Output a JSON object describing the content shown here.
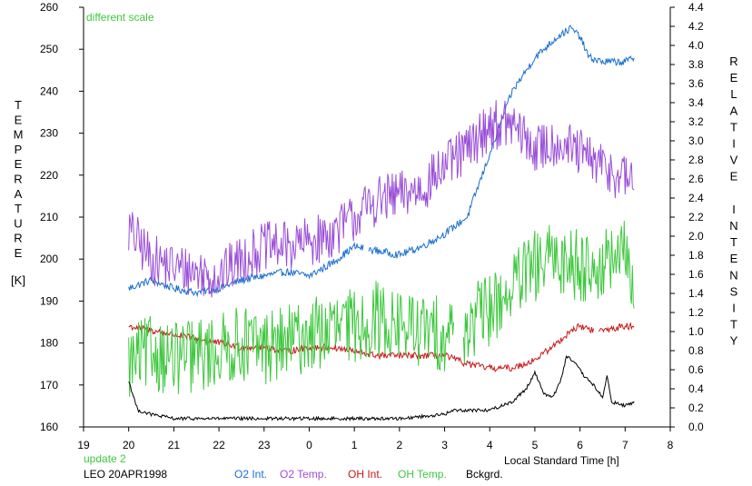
{
  "chart_data": {
    "type": "line",
    "left_axis_label": "TEMPERATURE",
    "left_axis_unit": "[K]",
    "right_axis_label": "RELATIVE INTENSITY",
    "x_axis_label": "Local Standard Time [h]",
    "x_ticks": [
      "19",
      "20",
      "21",
      "22",
      "23",
      "0",
      "1",
      "2",
      "3",
      "4",
      "5",
      "6",
      "7",
      "8"
    ],
    "left_ylim": [
      160,
      260
    ],
    "left_ticks": [
      160,
      170,
      180,
      190,
      200,
      210,
      220,
      230,
      240,
      250,
      260
    ],
    "right_ylim": [
      0.0,
      4.4
    ],
    "right_ticks": [
      "0.0",
      "0.2",
      "0.4",
      "0.6",
      "0.8",
      "1.0",
      "1.2",
      "1.4",
      "1.6",
      "1.8",
      "2.0",
      "2.2",
      "2.4",
      "2.6",
      "2.8",
      "3.0",
      "3.2",
      "3.4",
      "3.6",
      "3.8",
      "4.0",
      "4.2",
      "4.4"
    ],
    "note_top": "different scale",
    "note_bottom": "update 2",
    "site_date": "LEO 20APR1998",
    "series": [
      {
        "name": "O2 Int.",
        "axis": "left",
        "color": "#1a6fd0",
        "noise": 0.9,
        "gap": [
          25.2,
          25.3
        ],
        "points": [
          [
            20.0,
            193
          ],
          [
            20.5,
            195
          ],
          [
            21.0,
            193
          ],
          [
            21.5,
            192
          ],
          [
            22.0,
            193
          ],
          [
            22.5,
            195
          ],
          [
            23.0,
            196
          ],
          [
            23.5,
            197
          ],
          [
            24.0,
            196
          ],
          [
            24.5,
            199
          ],
          [
            25.0,
            203
          ],
          [
            25.5,
            202
          ],
          [
            26.0,
            201
          ],
          [
            26.5,
            203
          ],
          [
            27.0,
            206
          ],
          [
            27.5,
            210
          ],
          [
            28.0,
            225
          ],
          [
            28.5,
            240
          ],
          [
            29.0,
            248
          ],
          [
            29.5,
            253
          ],
          [
            29.8,
            255
          ],
          [
            30.0,
            253
          ],
          [
            30.2,
            248
          ],
          [
            30.5,
            247
          ],
          [
            31.0,
            247
          ],
          [
            31.2,
            248
          ]
        ]
      },
      {
        "name": "O2 Temp.",
        "axis": "left",
        "color": "#9a4fd8",
        "noise": 6,
        "points": [
          [
            20.0,
            207
          ],
          [
            20.5,
            200
          ],
          [
            21.0,
            198
          ],
          [
            21.5,
            197
          ],
          [
            22.0,
            196
          ],
          [
            22.5,
            200
          ],
          [
            23.0,
            203
          ],
          [
            23.5,
            203
          ],
          [
            24.0,
            204
          ],
          [
            24.5,
            206
          ],
          [
            25.0,
            210
          ],
          [
            25.5,
            214
          ],
          [
            26.0,
            215
          ],
          [
            26.5,
            217
          ],
          [
            27.0,
            222
          ],
          [
            27.5,
            226
          ],
          [
            28.0,
            232
          ],
          [
            28.5,
            232
          ],
          [
            29.0,
            226
          ],
          [
            29.5,
            228
          ],
          [
            30.0,
            225
          ],
          [
            30.5,
            222
          ],
          [
            31.0,
            219
          ],
          [
            31.2,
            220
          ]
        ]
      },
      {
        "name": "OH Int.",
        "axis": "left",
        "color": "#c81818",
        "noise": 0.8,
        "gap": [
          30.3,
          30.4
        ],
        "points": [
          [
            20.0,
            184
          ],
          [
            20.5,
            183
          ],
          [
            21.0,
            182
          ],
          [
            21.5,
            181
          ],
          [
            22.0,
            180
          ],
          [
            22.5,
            179
          ],
          [
            23.0,
            179
          ],
          [
            23.5,
            178
          ],
          [
            24.0,
            179
          ],
          [
            24.5,
            179
          ],
          [
            25.0,
            178
          ],
          [
            25.5,
            177
          ],
          [
            26.0,
            177
          ],
          [
            26.5,
            177
          ],
          [
            27.0,
            177
          ],
          [
            27.5,
            175
          ],
          [
            28.0,
            174
          ],
          [
            28.5,
            174
          ],
          [
            29.0,
            176
          ],
          [
            29.5,
            180
          ],
          [
            29.8,
            183
          ],
          [
            30.0,
            184
          ],
          [
            30.3,
            183
          ],
          [
            30.5,
            183
          ],
          [
            31.0,
            184
          ],
          [
            31.2,
            184
          ]
        ]
      },
      {
        "name": "OH Temp.",
        "axis": "left",
        "color": "#3ec83e",
        "noise": 9,
        "gap": [
          27.2,
          27.4
        ],
        "points": [
          [
            20.0,
            175
          ],
          [
            20.5,
            178
          ],
          [
            21.0,
            176
          ],
          [
            21.5,
            177
          ],
          [
            22.0,
            178
          ],
          [
            22.5,
            180
          ],
          [
            23.0,
            179
          ],
          [
            23.5,
            180
          ],
          [
            24.0,
            182
          ],
          [
            24.5,
            183
          ],
          [
            25.0,
            184
          ],
          [
            25.5,
            186
          ],
          [
            26.0,
            184
          ],
          [
            26.5,
            183
          ],
          [
            27.0,
            182
          ],
          [
            27.5,
            184
          ],
          [
            28.0,
            188
          ],
          [
            28.5,
            193
          ],
          [
            29.0,
            198
          ],
          [
            29.5,
            200
          ],
          [
            30.0,
            199
          ],
          [
            30.5,
            198
          ],
          [
            31.0,
            201
          ],
          [
            31.2,
            196
          ]
        ]
      },
      {
        "name": "Bckgrd.",
        "axis": "left",
        "color": "#000000",
        "noise": 0.4,
        "points": [
          [
            20.0,
            171
          ],
          [
            20.2,
            164
          ],
          [
            20.5,
            163
          ],
          [
            21.0,
            162
          ],
          [
            22.0,
            162
          ],
          [
            23.0,
            162
          ],
          [
            24.0,
            162
          ],
          [
            25.0,
            162
          ],
          [
            26.0,
            162
          ],
          [
            27.0,
            163
          ],
          [
            27.2,
            164
          ],
          [
            27.6,
            164
          ],
          [
            28.0,
            164
          ],
          [
            28.5,
            166
          ],
          [
            28.8,
            169
          ],
          [
            29.0,
            173
          ],
          [
            29.2,
            168
          ],
          [
            29.4,
            167
          ],
          [
            29.6,
            172
          ],
          [
            29.7,
            177
          ],
          [
            29.9,
            175
          ],
          [
            30.1,
            172
          ],
          [
            30.3,
            170
          ],
          [
            30.5,
            167
          ],
          [
            30.6,
            172
          ],
          [
            30.7,
            166
          ],
          [
            31.0,
            165
          ],
          [
            31.2,
            166
          ]
        ]
      }
    ]
  }
}
